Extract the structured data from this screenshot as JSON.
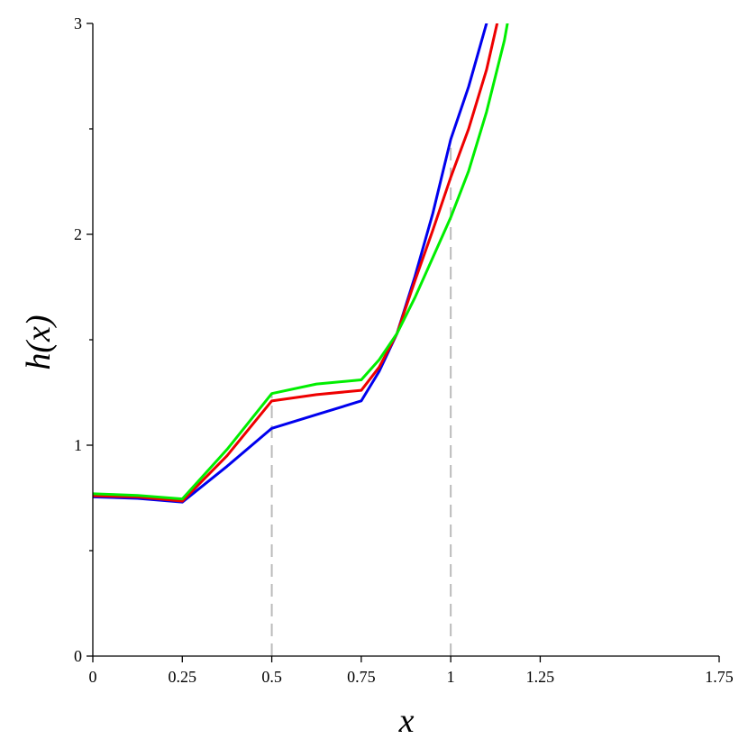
{
  "chart_data": {
    "type": "line",
    "title": "",
    "xlabel": "x",
    "ylabel": "h(x)",
    "xlim": [
      0,
      1.75
    ],
    "ylim": [
      0,
      3
    ],
    "x_ticks": [
      {
        "value": 0,
        "label": "0"
      },
      {
        "value": 0.25,
        "label": "0.25"
      },
      {
        "value": 0.5,
        "label": "0.5"
      },
      {
        "value": 0.75,
        "label": "0.75"
      },
      {
        "value": 1,
        "label": "1"
      },
      {
        "value": 1.25,
        "label": "1.25"
      },
      {
        "value": 1.75,
        "label": "1.75"
      }
    ],
    "y_ticks": [
      {
        "value": 0,
        "label": "0"
      },
      {
        "value": 1,
        "label": "1"
      },
      {
        "value": 2,
        "label": "2"
      },
      {
        "value": 3,
        "label": "3"
      }
    ],
    "y_minor_ticks": [
      0.5,
      1.5,
      2.5
    ],
    "grid": false,
    "legend": "none",
    "reference_lines": [
      {
        "x": 0.5,
        "y_from": 0,
        "y_to": 1.25,
        "color": "#bbbbbb",
        "style": "dashed"
      },
      {
        "x": 1.0,
        "y_from": 0,
        "y_to": 2.45,
        "color": "#bbbbbb",
        "style": "dashed"
      }
    ],
    "series": [
      {
        "color": "#0000ee",
        "points": [
          [
            0,
            0.755
          ],
          [
            0.125,
            0.748
          ],
          [
            0.25,
            0.73
          ],
          [
            0.375,
            0.9
          ],
          [
            0.5,
            1.08
          ],
          [
            0.625,
            1.145
          ],
          [
            0.75,
            1.21
          ],
          [
            0.8,
            1.35
          ],
          [
            0.85,
            1.53
          ],
          [
            0.9,
            1.8
          ],
          [
            0.95,
            2.1
          ],
          [
            1.0,
            2.45
          ],
          [
            1.05,
            2.7
          ],
          [
            1.1,
            3.0
          ],
          [
            1.15,
            3.32
          ]
        ]
      },
      {
        "color": "#ee0000",
        "points": [
          [
            0,
            0.76
          ],
          [
            0.125,
            0.755
          ],
          [
            0.25,
            0.735
          ],
          [
            0.375,
            0.95
          ],
          [
            0.5,
            1.21
          ],
          [
            0.625,
            1.24
          ],
          [
            0.75,
            1.26
          ],
          [
            0.8,
            1.37
          ],
          [
            0.85,
            1.53
          ],
          [
            0.9,
            1.78
          ],
          [
            0.95,
            2.02
          ],
          [
            1.0,
            2.27
          ],
          [
            1.05,
            2.5
          ],
          [
            1.1,
            2.78
          ],
          [
            1.17,
            3.3
          ]
        ]
      },
      {
        "color": "#00ee00",
        "points": [
          [
            0,
            0.77
          ],
          [
            0.125,
            0.762
          ],
          [
            0.25,
            0.745
          ],
          [
            0.375,
            0.98
          ],
          [
            0.5,
            1.245
          ],
          [
            0.625,
            1.29
          ],
          [
            0.75,
            1.31
          ],
          [
            0.8,
            1.405
          ],
          [
            0.85,
            1.53
          ],
          [
            0.9,
            1.7
          ],
          [
            0.95,
            1.89
          ],
          [
            1.0,
            2.08
          ],
          [
            1.05,
            2.3
          ],
          [
            1.1,
            2.58
          ],
          [
            1.15,
            2.92
          ],
          [
            1.19,
            3.3
          ]
        ]
      }
    ]
  }
}
